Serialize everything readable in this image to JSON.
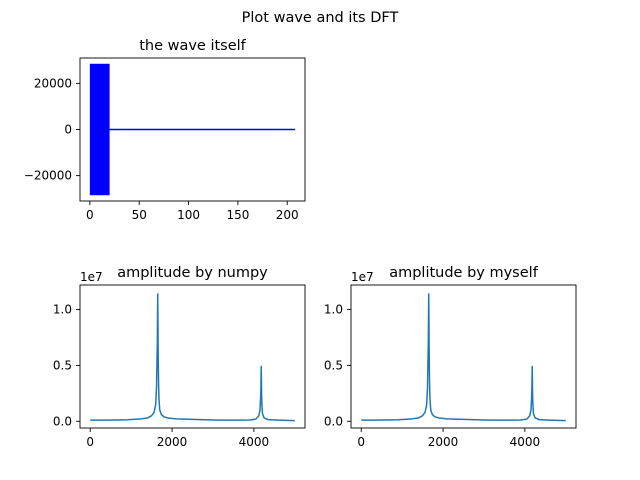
{
  "figure": {
    "suptitle": "Plot wave and its DFT"
  },
  "colors": {
    "wave": "#0000ff",
    "spectrum": "#1f77b4",
    "axes": "#000000",
    "background": "#ffffff"
  },
  "chart_data": [
    {
      "type": "line",
      "title": "the wave itself",
      "xlabel": "",
      "ylabel": "",
      "xlim": [
        -10,
        218
      ],
      "ylim": [
        -31000,
        31000
      ],
      "xticks": [
        0,
        50,
        100,
        150,
        200
      ],
      "xtick_labels": [
        "0",
        "50",
        "100",
        "150",
        "200"
      ],
      "yticks": [
        -20000,
        0,
        20000
      ],
      "ytick_labels": [
        "−20000",
        "0",
        "20000"
      ],
      "grid": false,
      "series": [
        {
          "color": "#0000ff",
          "band_x": [
            0,
            20
          ],
          "band_amplitude": 28500,
          "x": [
            0,
            20,
            21,
            208
          ],
          "y": [
            0,
            0,
            0,
            0
          ]
        }
      ]
    },
    {
      "type": "line",
      "title": "amplitude by numpy",
      "xlabel": "",
      "ylabel": "",
      "offset_text": "1e7",
      "xlim": [
        -250,
        5250
      ],
      "ylim": [
        -0.06,
        1.22
      ],
      "xticks": [
        0,
        2000,
        4000
      ],
      "xtick_labels": [
        "0",
        "2000",
        "4000"
      ],
      "yticks": [
        0.0,
        0.5,
        1.0
      ],
      "ytick_labels": [
        "0.0",
        "0.5",
        "1.0"
      ],
      "grid": false,
      "series": [
        {
          "color": "#1f77b4",
          "x": [
            0,
            300,
            600,
            900,
            1200,
            1400,
            1500,
            1560,
            1600,
            1620,
            1640,
            1650,
            1660,
            1670,
            1680,
            1700,
            1740,
            1800,
            1900,
            2100,
            2400,
            2700,
            3000,
            3300,
            3600,
            3900,
            4050,
            4120,
            4150,
            4170,
            4180,
            4190,
            4210,
            4250,
            4350,
            4600,
            4800,
            5000
          ],
          "y": [
            0.01,
            0.01,
            0.012,
            0.014,
            0.02,
            0.03,
            0.05,
            0.08,
            0.15,
            0.3,
            0.7,
            1.14,
            0.65,
            0.35,
            0.2,
            0.1,
            0.06,
            0.04,
            0.03,
            0.022,
            0.018,
            0.015,
            0.012,
            0.01,
            0.01,
            0.012,
            0.02,
            0.05,
            0.1,
            0.25,
            0.49,
            0.2,
            0.07,
            0.03,
            0.015,
            0.01,
            0.008,
            0.006
          ]
        }
      ]
    },
    {
      "type": "line",
      "title": "amplitude by myself",
      "xlabel": "",
      "ylabel": "",
      "offset_text": "1e7",
      "xlim": [
        -250,
        5250
      ],
      "ylim": [
        -0.06,
        1.22
      ],
      "xticks": [
        0,
        2000,
        4000
      ],
      "xtick_labels": [
        "0",
        "2000",
        "4000"
      ],
      "yticks": [
        0.0,
        0.5,
        1.0
      ],
      "ytick_labels": [
        "0.0",
        "0.5",
        "1.0"
      ],
      "grid": false,
      "series": [
        {
          "color": "#1f77b4",
          "x": [
            0,
            300,
            600,
            900,
            1200,
            1400,
            1500,
            1560,
            1600,
            1620,
            1640,
            1650,
            1660,
            1670,
            1680,
            1700,
            1740,
            1800,
            1900,
            2100,
            2400,
            2700,
            3000,
            3300,
            3600,
            3900,
            4050,
            4120,
            4150,
            4170,
            4180,
            4190,
            4210,
            4250,
            4350,
            4600,
            4800,
            5000
          ],
          "y": [
            0.01,
            0.01,
            0.012,
            0.014,
            0.02,
            0.03,
            0.05,
            0.08,
            0.15,
            0.3,
            0.7,
            1.14,
            0.65,
            0.35,
            0.2,
            0.1,
            0.06,
            0.04,
            0.03,
            0.022,
            0.018,
            0.015,
            0.012,
            0.01,
            0.01,
            0.012,
            0.02,
            0.05,
            0.1,
            0.25,
            0.49,
            0.2,
            0.07,
            0.03,
            0.015,
            0.01,
            0.008,
            0.006
          ]
        }
      ]
    }
  ]
}
